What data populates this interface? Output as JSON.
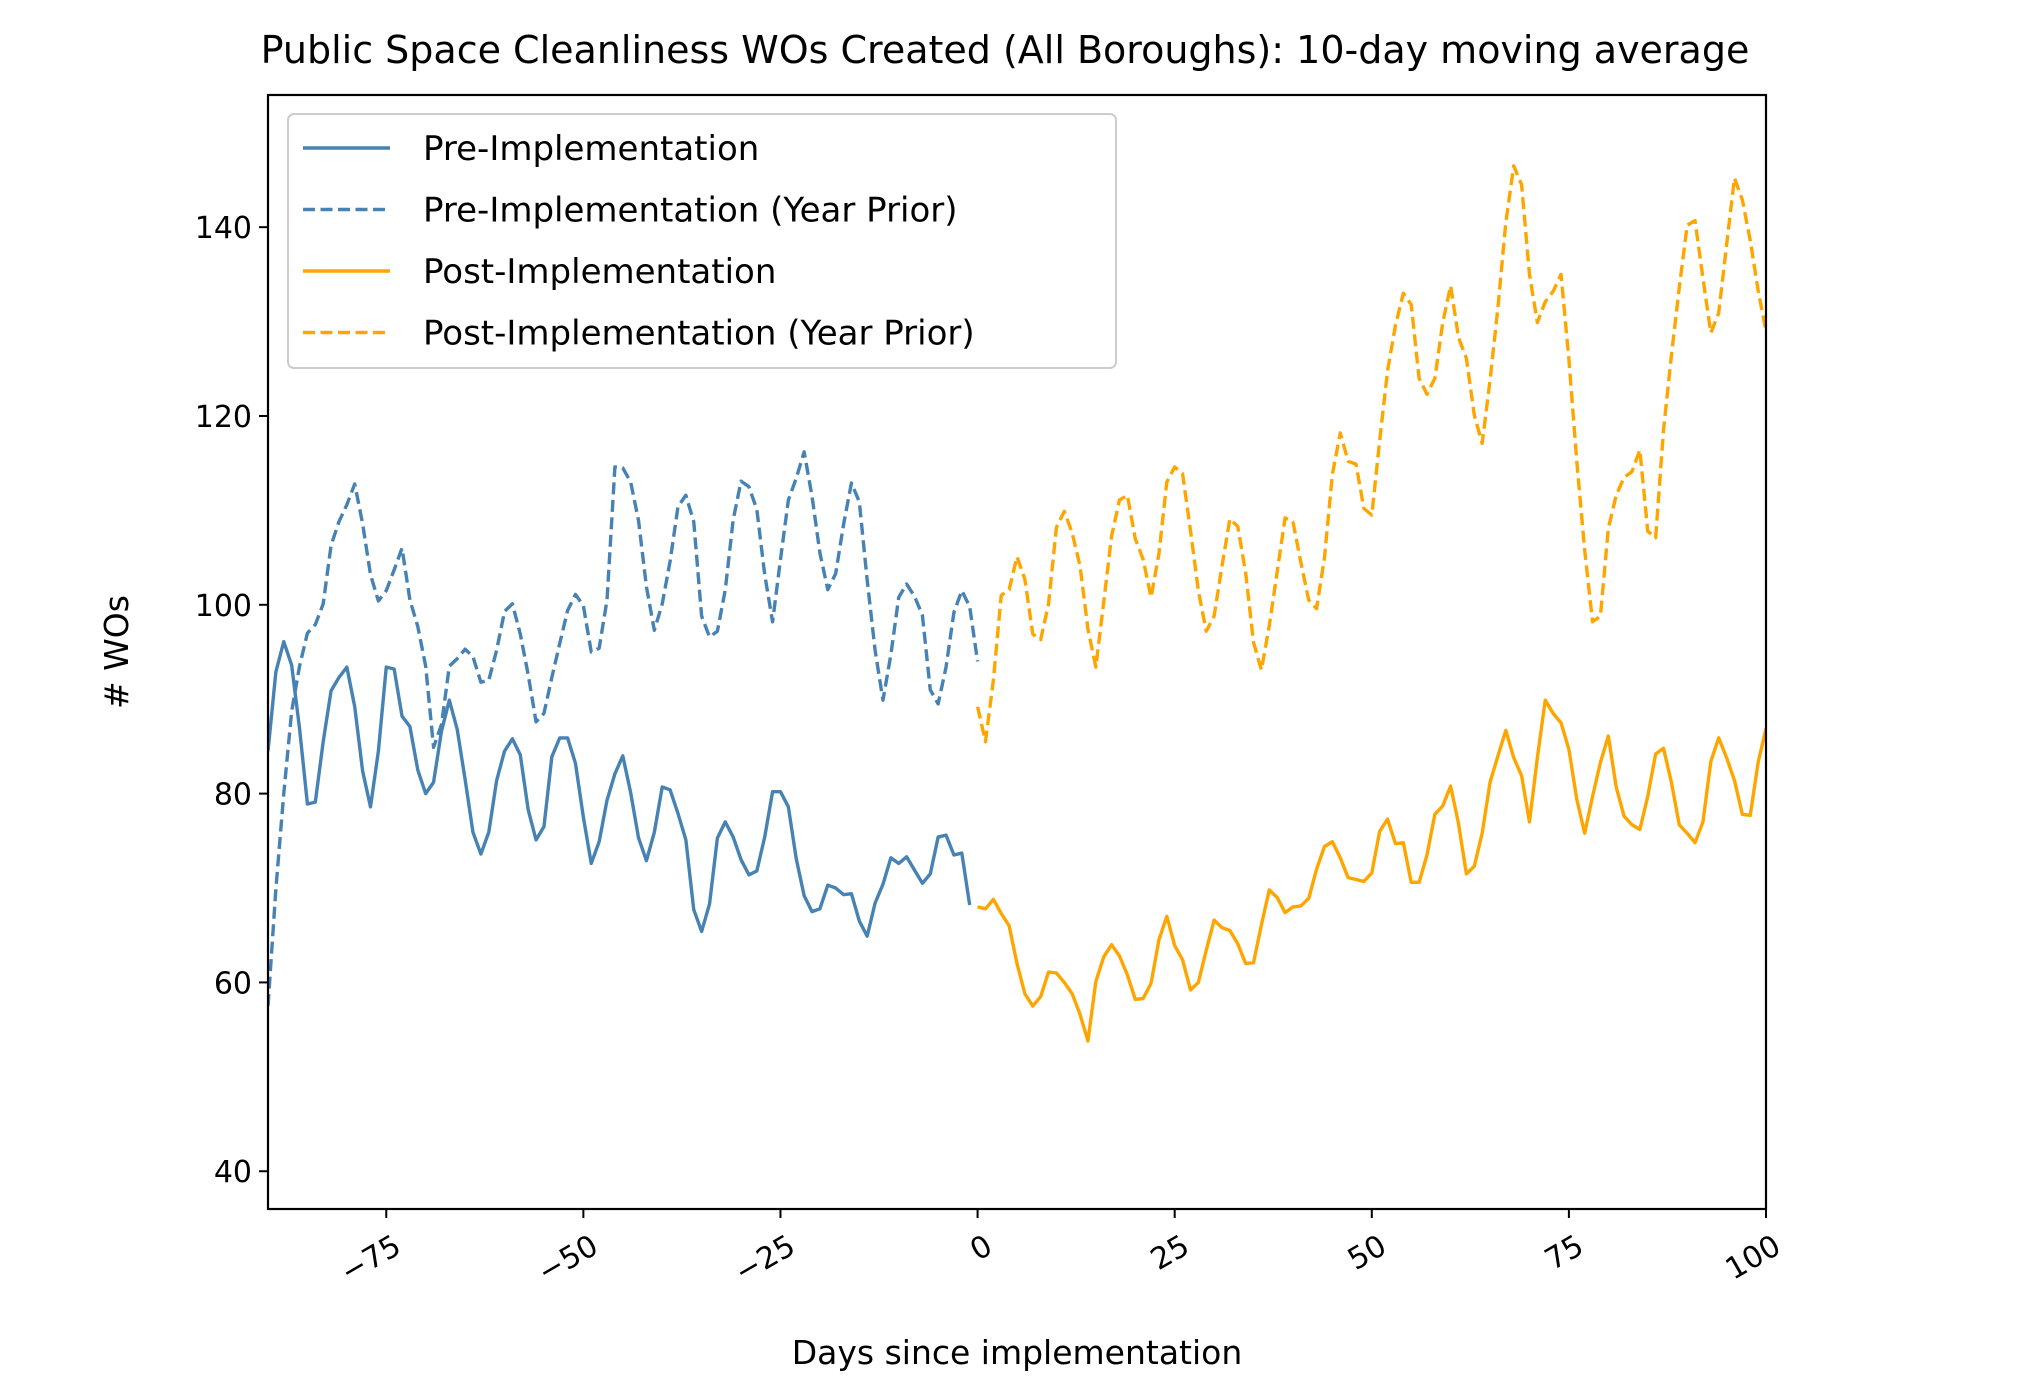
{
  "chart_data": {
    "type": "line",
    "title": "Public Space Cleanliness WOs Created (All Boroughs): 10-day moving average",
    "xlabel": "Days since implementation",
    "ylabel": "# WOs",
    "xlim": [
      -90,
      100
    ],
    "ylim": [
      36,
      154
    ],
    "x_ticks": [
      -75,
      -50,
      -25,
      0,
      25,
      50,
      75,
      100
    ],
    "x_tick_labels": [
      "−75",
      "−50",
      "−25",
      "0",
      "25",
      "50",
      "75",
      "100"
    ],
    "y_ticks": [
      40,
      60,
      80,
      100,
      120,
      140
    ],
    "y_tick_labels": [
      "40",
      "60",
      "80",
      "100",
      "120",
      "140"
    ],
    "grid": false,
    "legend_position": "upper-left",
    "colors": {
      "pre": "#4682b4",
      "post": "#ffa500"
    },
    "series": [
      {
        "name": "Pre-Implementation",
        "style": "solid",
        "color": "#4682b4",
        "x_start": -90,
        "x_step": 1,
        "values": [
          84.5,
          92.9,
          96.1,
          93.6,
          86.9,
          78.9,
          79.1,
          85.5,
          90.9,
          92.3,
          93.4,
          89.2,
          82.4,
          78.6,
          84.5,
          93.4,
          93.2,
          88.2,
          87.1,
          82.5,
          80.0,
          81.2,
          86.6,
          89.9,
          86.8,
          81.5,
          75.9,
          73.6,
          75.9,
          81.4,
          84.5,
          85.8,
          84.1,
          78.3,
          75.1,
          76.5,
          83.9,
          85.9,
          85.9,
          83.2,
          77.5,
          72.6,
          74.9,
          79.3,
          82.1,
          84.0,
          80.1,
          75.3,
          72.9,
          75.9,
          80.7,
          80.4,
          77.9,
          75.1,
          67.7,
          65.4,
          68.3,
          75.3,
          77.0,
          75.4,
          73.0,
          71.4,
          71.8,
          75.4,
          80.2,
          80.2,
          78.6,
          73.1,
          69.2,
          67.5,
          67.8,
          70.3,
          70.0,
          69.3,
          69.4,
          66.5,
          64.9,
          68.4,
          70.4,
          73.2,
          72.6,
          73.3,
          71.9,
          70.5,
          71.5,
          75.4,
          75.6,
          73.5,
          73.7,
          68.2
        ]
      },
      {
        "name": "Pre-Implementation (Year Prior)",
        "style": "dashed",
        "color": "#4682b4",
        "x_start": -90,
        "x_step": 1,
        "values": [
          57.5,
          69.9,
          80.0,
          88.7,
          93.5,
          97.0,
          97.9,
          100.1,
          106.3,
          108.8,
          110.6,
          112.8,
          108.6,
          103.2,
          100.4,
          101.5,
          103.7,
          106.0,
          100.5,
          97.7,
          93.5,
          84.9,
          87.3,
          93.5,
          94.3,
          95.3,
          94.5,
          91.8,
          92.0,
          95.2,
          99.3,
          100.1,
          96.9,
          92.6,
          87.6,
          88.5,
          92.3,
          95.9,
          99.4,
          101.1,
          99.9,
          95.0,
          95.4,
          100.5,
          114.6,
          114.5,
          113.0,
          108.9,
          101.9,
          97.3,
          100.1,
          104.6,
          110.4,
          111.6,
          108.8,
          98.8,
          96.6,
          97.2,
          101.6,
          109.0,
          113.1,
          112.5,
          110.1,
          103.2,
          98.2,
          104.8,
          111.1,
          113.4,
          116.2,
          111.5,
          105.5,
          101.6,
          103.3,
          108.5,
          112.9,
          110.9,
          102.6,
          95.2,
          89.9,
          94.7,
          100.8,
          102.2,
          100.9,
          98.9,
          91.0,
          89.5,
          93.4,
          99.2,
          101.5,
          99.8,
          94.0
        ]
      },
      {
        "name": "Post-Implementation",
        "style": "solid",
        "color": "#ffa500",
        "x_start": 0,
        "x_step": 1,
        "values": [
          68.0,
          67.8,
          68.8,
          67.3,
          66.0,
          62.0,
          58.8,
          57.5,
          58.5,
          61.1,
          61.0,
          60.0,
          58.8,
          56.6,
          53.8,
          60.1,
          62.7,
          64.0,
          62.8,
          60.8,
          58.2,
          58.3,
          59.9,
          64.5,
          67.0,
          63.9,
          62.4,
          59.2,
          60.0,
          63.4,
          66.6,
          65.8,
          65.5,
          64.1,
          62.0,
          62.1,
          66.1,
          69.8,
          69.0,
          67.4,
          68.0,
          68.1,
          68.9,
          72.0,
          74.4,
          74.9,
          73.2,
          71.1,
          70.9,
          70.7,
          71.6,
          76.0,
          77.3,
          74.7,
          74.8,
          70.6,
          70.6,
          73.5,
          77.8,
          78.7,
          80.8,
          76.8,
          71.5,
          72.3,
          75.8,
          81.2,
          84.0,
          86.7,
          83.8,
          81.9,
          77.0,
          83.8,
          89.9,
          88.5,
          87.5,
          84.7,
          79.4,
          75.8,
          79.7,
          83.3,
          86.1,
          80.7,
          77.6,
          76.7,
          76.2,
          79.7,
          84.2,
          84.8,
          81.2,
          76.7,
          75.8,
          74.8,
          77.0,
          83.4,
          85.9,
          83.8,
          81.4,
          77.8,
          77.7,
          83.3,
          86.9
        ]
      },
      {
        "name": "Post-Implementation (Year Prior)",
        "style": "dashed",
        "color": "#ffa500",
        "x_start": 0,
        "x_step": 1,
        "values": [
          89.2,
          85.5,
          92.0,
          101.0,
          101.6,
          105.1,
          102.7,
          96.9,
          96.3,
          100.1,
          108.2,
          109.9,
          107.6,
          104.1,
          97.4,
          93.4,
          100.3,
          107.3,
          111.1,
          111.6,
          107.0,
          104.8,
          100.8,
          105.4,
          113.0,
          114.6,
          113.9,
          107.9,
          101.5,
          97.2,
          98.8,
          104.1,
          109.1,
          108.3,
          103.4,
          96.0,
          93.1,
          97.8,
          103.5,
          109.2,
          108.8,
          104.5,
          100.5,
          99.6,
          105.0,
          113.8,
          118.2,
          115.2,
          114.9,
          110.2,
          109.5,
          117.4,
          124.8,
          129.6,
          133.0,
          131.8,
          124.0,
          122.3,
          124.0,
          129.9,
          133.8,
          128.3,
          126.1,
          120.1,
          117.1,
          123.8,
          131.5,
          140.5,
          146.5,
          144.5,
          135.0,
          129.9,
          132.1,
          133.2,
          135.0,
          126.0,
          115.2,
          105.8,
          98.2,
          98.8,
          108.1,
          111.6,
          113.5,
          114.1,
          116.4,
          107.8,
          107.1,
          118.5,
          126.4,
          133.6,
          140.2,
          140.7,
          134.6,
          128.8,
          130.9,
          138.1,
          145.2,
          142.9,
          138.6,
          133.3,
          129.0,
          132.9
        ]
      }
    ]
  }
}
